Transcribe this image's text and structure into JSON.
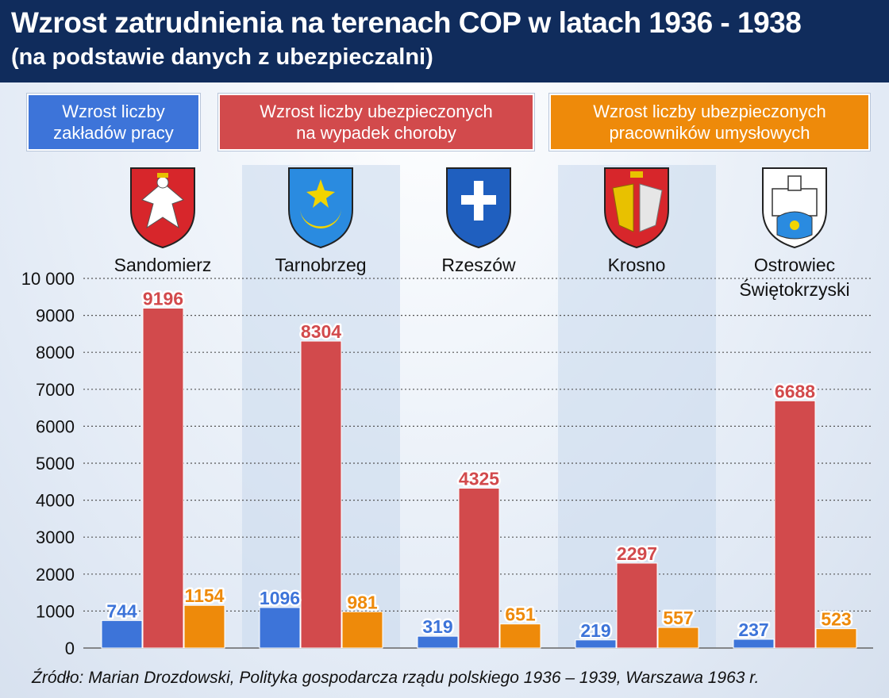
{
  "header": {
    "title": "Wzrost zatrudnienia na terenach COP w latach 1936 - 1938",
    "subtitle": "(na podstawie danych z ubezpieczalni)"
  },
  "legend": [
    {
      "label": "Wzrost liczby\nzakładów pracy",
      "color": "#3d74d9"
    },
    {
      "label": "Wzrost liczby ubezpieczonych\nna wypadek choroby",
      "color": "#d24a4c"
    },
    {
      "label": "Wzrost liczby ubezpieczonych\npracowników umysłowych",
      "color": "#ee8a0a"
    }
  ],
  "source": "Źródło: Marian Drozdowski, Polityka gospodarcza rządu polskiego 1936 – 1939, Warszawa 1963 r.",
  "colors": {
    "blue": "#3d74d9",
    "red": "#d24a4c",
    "orange": "#ee8a0a",
    "header": "#102c5c"
  },
  "crests": [
    {
      "city": "Sandomierz",
      "icon": "white-eagle-crest"
    },
    {
      "city": "Tarnobrzeg",
      "icon": "star-crescent-crest"
    },
    {
      "city": "Rzeszów",
      "icon": "cross-crest"
    },
    {
      "city": "Krosno",
      "icon": "lion-eagle-crest"
    },
    {
      "city": "Ostrowiec Świętokrzyski",
      "icon": "castle-crest"
    }
  ],
  "chart_data": {
    "type": "bar",
    "categories": [
      "Sandomierz",
      "Tarnobrzeg",
      "Rzeszów",
      "Krosno",
      "Ostrowiec\nŚwiętokrzyski"
    ],
    "series": [
      {
        "name": "Wzrost liczby zakładów pracy",
        "values": [
          744,
          1096,
          319,
          219,
          237
        ],
        "color": "#3d74d9"
      },
      {
        "name": "Wzrost liczby ubezpieczonych na wypadek choroby",
        "values": [
          9196,
          8304,
          4325,
          2297,
          6688
        ],
        "color": "#d24a4c"
      },
      {
        "name": "Wzrost liczby ubezpieczonych pracowników umysłowych",
        "values": [
          1154,
          981,
          651,
          557,
          523
        ],
        "color": "#ee8a0a"
      }
    ],
    "ylim": [
      0,
      10000
    ],
    "yticks": [
      0,
      1000,
      2000,
      3000,
      4000,
      5000,
      6000,
      7000,
      8000,
      9000,
      10000
    ],
    "ytick_labels": [
      "0",
      "1000",
      "2000",
      "3000",
      "4000",
      "5000",
      "6000",
      "7000",
      "8000",
      "9000",
      "10 000"
    ],
    "grid": true,
    "legend_position": "top"
  }
}
